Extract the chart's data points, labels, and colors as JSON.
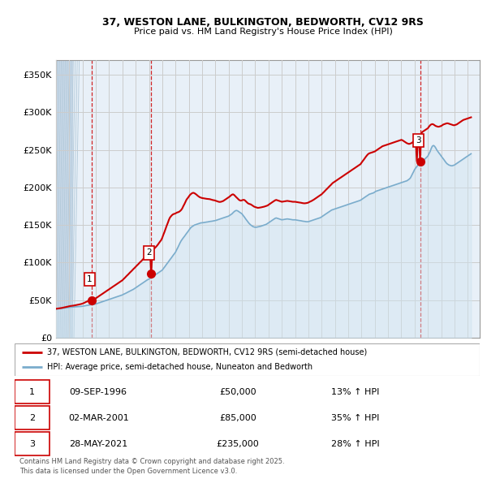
{
  "title1": "37, WESTON LANE, BULKINGTON, BEDWORTH, CV12 9RS",
  "title2": "Price paid vs. HM Land Registry's House Price Index (HPI)",
  "xlim_start": 1994.0,
  "xlim_end": 2025.9,
  "ylim": [
    0,
    370000
  ],
  "yticks": [
    0,
    50000,
    100000,
    150000,
    200000,
    250000,
    300000,
    350000
  ],
  "ytick_labels": [
    "£0",
    "£50K",
    "£100K",
    "£150K",
    "£200K",
    "£250K",
    "£300K",
    "£350K"
  ],
  "sale_dates": [
    1996.69,
    2001.17,
    2021.41
  ],
  "sale_prices": [
    50000,
    85000,
    235000
  ],
  "sale_labels": [
    "1",
    "2",
    "3"
  ],
  "legend_line1": "37, WESTON LANE, BULKINGTON, BEDWORTH, CV12 9RS (semi-detached house)",
  "legend_line2": "HPI: Average price, semi-detached house, Nuneaton and Bedworth",
  "transaction_rows": [
    [
      "1",
      "09-SEP-1996",
      "£50,000",
      "13% ↑ HPI"
    ],
    [
      "2",
      "02-MAR-2001",
      "£85,000",
      "35% ↑ HPI"
    ],
    [
      "3",
      "28-MAY-2021",
      "£235,000",
      "28% ↑ HPI"
    ]
  ],
  "footnote": "Contains HM Land Registry data © Crown copyright and database right 2025.\nThis data is licensed under the Open Government Licence v3.0.",
  "red_color": "#cc0000",
  "blue_color": "#7aaccc",
  "blue_fill": "#d0e4f0",
  "vline_color": "#cc0000",
  "grid_color": "#cccccc",
  "bg_color": "#e8f0f8",
  "hatch_color": "#c8d8e8",
  "hpi_x": [
    1994.0,
    1994.08,
    1994.17,
    1994.25,
    1994.33,
    1994.42,
    1994.5,
    1994.58,
    1994.67,
    1994.75,
    1994.83,
    1994.92,
    1995.0,
    1995.08,
    1995.17,
    1995.25,
    1995.33,
    1995.42,
    1995.5,
    1995.58,
    1995.67,
    1995.75,
    1995.83,
    1995.92,
    1996.0,
    1996.08,
    1996.17,
    1996.25,
    1996.33,
    1996.42,
    1996.5,
    1996.58,
    1996.67,
    1996.75,
    1996.83,
    1996.92,
    1997.0,
    1997.08,
    1997.17,
    1997.25,
    1997.33,
    1997.42,
    1997.5,
    1997.58,
    1997.67,
    1997.75,
    1997.83,
    1997.92,
    1998.0,
    1998.08,
    1998.17,
    1998.25,
    1998.33,
    1998.42,
    1998.5,
    1998.58,
    1998.67,
    1998.75,
    1998.83,
    1998.92,
    1999.0,
    1999.08,
    1999.17,
    1999.25,
    1999.33,
    1999.42,
    1999.5,
    1999.58,
    1999.67,
    1999.75,
    1999.83,
    1999.92,
    2000.0,
    2000.08,
    2000.17,
    2000.25,
    2000.33,
    2000.42,
    2000.5,
    2000.58,
    2000.67,
    2000.75,
    2000.83,
    2000.92,
    2001.0,
    2001.08,
    2001.17,
    2001.25,
    2001.33,
    2001.42,
    2001.5,
    2001.58,
    2001.67,
    2001.75,
    2001.83,
    2001.92,
    2002.0,
    2002.08,
    2002.17,
    2002.25,
    2002.33,
    2002.42,
    2002.5,
    2002.58,
    2002.67,
    2002.75,
    2002.83,
    2002.92,
    2003.0,
    2003.08,
    2003.17,
    2003.25,
    2003.33,
    2003.42,
    2003.5,
    2003.58,
    2003.67,
    2003.75,
    2003.83,
    2003.92,
    2004.0,
    2004.08,
    2004.17,
    2004.25,
    2004.33,
    2004.42,
    2004.5,
    2004.58,
    2004.67,
    2004.75,
    2004.83,
    2004.92,
    2005.0,
    2005.08,
    2005.17,
    2005.25,
    2005.33,
    2005.42,
    2005.5,
    2005.58,
    2005.67,
    2005.75,
    2005.83,
    2005.92,
    2006.0,
    2006.08,
    2006.17,
    2006.25,
    2006.33,
    2006.42,
    2006.5,
    2006.58,
    2006.67,
    2006.75,
    2006.83,
    2006.92,
    2007.0,
    2007.08,
    2007.17,
    2007.25,
    2007.33,
    2007.42,
    2007.5,
    2007.58,
    2007.67,
    2007.75,
    2007.83,
    2007.92,
    2008.0,
    2008.08,
    2008.17,
    2008.25,
    2008.33,
    2008.42,
    2008.5,
    2008.58,
    2008.67,
    2008.75,
    2008.83,
    2008.92,
    2009.0,
    2009.08,
    2009.17,
    2009.25,
    2009.33,
    2009.42,
    2009.5,
    2009.58,
    2009.67,
    2009.75,
    2009.83,
    2009.92,
    2010.0,
    2010.08,
    2010.17,
    2010.25,
    2010.33,
    2010.42,
    2010.5,
    2010.58,
    2010.67,
    2010.75,
    2010.83,
    2010.92,
    2011.0,
    2011.08,
    2011.17,
    2011.25,
    2011.33,
    2011.42,
    2011.5,
    2011.58,
    2011.67,
    2011.75,
    2011.83,
    2011.92,
    2012.0,
    2012.08,
    2012.17,
    2012.25,
    2012.33,
    2012.42,
    2012.5,
    2012.58,
    2012.67,
    2012.75,
    2012.83,
    2012.92,
    2013.0,
    2013.08,
    2013.17,
    2013.25,
    2013.33,
    2013.42,
    2013.5,
    2013.58,
    2013.67,
    2013.75,
    2013.83,
    2013.92,
    2014.0,
    2014.08,
    2014.17,
    2014.25,
    2014.33,
    2014.42,
    2014.5,
    2014.58,
    2014.67,
    2014.75,
    2014.83,
    2014.92,
    2015.0,
    2015.08,
    2015.17,
    2015.25,
    2015.33,
    2015.42,
    2015.5,
    2015.58,
    2015.67,
    2015.75,
    2015.83,
    2015.92,
    2016.0,
    2016.08,
    2016.17,
    2016.25,
    2016.33,
    2016.42,
    2016.5,
    2016.58,
    2016.67,
    2016.75,
    2016.83,
    2016.92,
    2017.0,
    2017.08,
    2017.17,
    2017.25,
    2017.33,
    2017.42,
    2017.5,
    2017.58,
    2017.67,
    2017.75,
    2017.83,
    2017.92,
    2018.0,
    2018.08,
    2018.17,
    2018.25,
    2018.33,
    2018.42,
    2018.5,
    2018.58,
    2018.67,
    2018.75,
    2018.83,
    2018.92,
    2019.0,
    2019.08,
    2019.17,
    2019.25,
    2019.33,
    2019.42,
    2019.5,
    2019.58,
    2019.67,
    2019.75,
    2019.83,
    2019.92,
    2020.0,
    2020.08,
    2020.17,
    2020.25,
    2020.33,
    2020.42,
    2020.5,
    2020.58,
    2020.67,
    2020.75,
    2020.83,
    2020.92,
    2021.0,
    2021.08,
    2021.17,
    2021.25,
    2021.33,
    2021.42,
    2021.5,
    2021.58,
    2021.67,
    2021.75,
    2021.83,
    2021.92,
    2022.0,
    2022.08,
    2022.17,
    2022.25,
    2022.33,
    2022.42,
    2022.5,
    2022.58,
    2022.67,
    2022.75,
    2022.83,
    2022.92,
    2023.0,
    2023.08,
    2023.17,
    2023.25,
    2023.33,
    2023.42,
    2023.5,
    2023.58,
    2023.67,
    2023.75,
    2023.83,
    2023.92,
    2024.0,
    2024.08,
    2024.17,
    2024.25,
    2024.33,
    2024.42,
    2024.5,
    2024.58,
    2024.67,
    2024.75,
    2024.83,
    2024.92,
    2025.0,
    2025.08,
    2025.17,
    2025.25
  ],
  "hpi_y": [
    38000,
    38200,
    38400,
    38600,
    38800,
    39000,
    39200,
    39400,
    39600,
    39800,
    40000,
    40200,
    40400,
    40500,
    40700,
    40800,
    41000,
    41100,
    41200,
    41300,
    41400,
    41500,
    41600,
    41700,
    42000,
    42200,
    42500,
    42800,
    43000,
    43200,
    43500,
    43800,
    44000,
    44200,
    44400,
    44700,
    45000,
    45500,
    46000,
    46500,
    47000,
    47500,
    48000,
    48500,
    49000,
    49500,
    50000,
    50500,
    51000,
    51500,
    52000,
    52500,
    53000,
    53500,
    54000,
    54500,
    55000,
    55500,
    56000,
    56500,
    57000,
    57800,
    58500,
    59200,
    60000,
    60800,
    61500,
    62200,
    63000,
    63800,
    64500,
    65500,
    66500,
    67500,
    68500,
    69500,
    70500,
    71500,
    72500,
    73500,
    74500,
    75500,
    76500,
    77500,
    78000,
    79000,
    80000,
    81000,
    82000,
    83000,
    84000,
    85000,
    86000,
    87000,
    88000,
    89000,
    90000,
    92000,
    94000,
    96000,
    98000,
    100000,
    102000,
    104000,
    106000,
    108000,
    110000,
    112000,
    114000,
    117000,
    120000,
    123000,
    126000,
    129000,
    131000,
    133000,
    135000,
    137000,
    139000,
    141000,
    143000,
    145000,
    147000,
    148000,
    149000,
    150000,
    150500,
    151000,
    151500,
    152000,
    152500,
    153000,
    153000,
    153200,
    153500,
    153800,
    154000,
    154200,
    154500,
    154800,
    155000,
    155200,
    155500,
    155800,
    156000,
    156500,
    157000,
    157500,
    158000,
    158500,
    159000,
    159500,
    160000,
    160500,
    161000,
    161500,
    162000,
    163000,
    164000,
    165000,
    166500,
    168000,
    169000,
    169500,
    169000,
    168000,
    167000,
    166000,
    165000,
    163000,
    161000,
    159000,
    157000,
    155000,
    153000,
    151500,
    150000,
    149000,
    148000,
    147500,
    147000,
    147200,
    147500,
    147800,
    148000,
    148500,
    149000,
    149500,
    150000,
    150500,
    151000,
    152000,
    153000,
    154000,
    155000,
    156000,
    157000,
    158000,
    159000,
    159500,
    159000,
    158500,
    158000,
    157500,
    157000,
    157200,
    157500,
    157800,
    158000,
    158200,
    158000,
    157800,
    157500,
    157200,
    157000,
    157000,
    157000,
    156800,
    156500,
    156200,
    156000,
    155800,
    155500,
    155200,
    155000,
    154800,
    154500,
    154500,
    154500,
    155000,
    155500,
    156000,
    156500,
    157000,
    157500,
    158000,
    158500,
    159000,
    159500,
    160000,
    161000,
    162000,
    163000,
    164000,
    165000,
    166000,
    167000,
    168000,
    169000,
    170000,
    170500,
    171000,
    171500,
    172000,
    172500,
    173000,
    173500,
    174000,
    174500,
    175000,
    175500,
    176000,
    176500,
    177000,
    177500,
    178000,
    178500,
    179000,
    179500,
    180000,
    180500,
    181000,
    181500,
    182000,
    182500,
    183000,
    184000,
    185000,
    186000,
    187000,
    188000,
    189000,
    190000,
    191000,
    191500,
    192000,
    192500,
    193000,
    194000,
    195000,
    195500,
    196000,
    196500,
    197000,
    197500,
    198000,
    198500,
    199000,
    199500,
    200000,
    200500,
    201000,
    201500,
    202000,
    202500,
    203000,
    203500,
    204000,
    204500,
    205000,
    205500,
    206000,
    206500,
    207000,
    207500,
    208000,
    208500,
    209000,
    210000,
    211000,
    212500,
    215000,
    218000,
    221000,
    224000,
    226000,
    228000,
    230000,
    232000,
    233000,
    234000,
    235000,
    236000,
    237500,
    239000,
    240500,
    242000,
    245000,
    248000,
    252000,
    255000,
    256000,
    255000,
    253000,
    250000,
    248000,
    246000,
    244000,
    242000,
    240000,
    238000,
    236000,
    234000,
    232000,
    231000,
    230000,
    229500,
    229000,
    229000,
    229500,
    230000,
    231000,
    232000,
    233000,
    234000,
    235000,
    236000,
    237000,
    238000,
    239000,
    240000,
    241000,
    242000,
    243000,
    244000,
    245000
  ],
  "price_x": [
    1994.0,
    1994.08,
    1994.17,
    1994.25,
    1994.33,
    1994.42,
    1994.5,
    1994.58,
    1994.67,
    1994.75,
    1994.83,
    1994.92,
    1995.0,
    1995.08,
    1995.17,
    1995.25,
    1995.33,
    1995.42,
    1995.5,
    1995.58,
    1995.67,
    1995.75,
    1995.83,
    1995.92,
    1996.0,
    1996.08,
    1996.17,
    1996.25,
    1996.33,
    1996.42,
    1996.5,
    1996.58,
    1996.69,
    1996.75,
    1996.83,
    1996.92,
    1997.0,
    1997.08,
    1997.17,
    1997.25,
    1997.33,
    1997.42,
    1997.5,
    1997.58,
    1997.67,
    1997.75,
    1997.83,
    1997.92,
    1998.0,
    1998.08,
    1998.17,
    1998.25,
    1998.33,
    1998.42,
    1998.5,
    1998.58,
    1998.67,
    1998.75,
    1998.83,
    1998.92,
    1999.0,
    1999.08,
    1999.17,
    1999.25,
    1999.33,
    1999.42,
    1999.5,
    1999.58,
    1999.67,
    1999.75,
    1999.83,
    1999.92,
    2000.0,
    2000.08,
    2000.17,
    2000.25,
    2000.33,
    2000.42,
    2000.5,
    2000.58,
    2000.67,
    2000.75,
    2000.83,
    2000.92,
    2001.0,
    2001.08,
    2001.17,
    2001.25,
    2001.33,
    2001.42,
    2001.5,
    2001.58,
    2001.67,
    2001.75,
    2001.83,
    2001.92,
    2002.0,
    2002.08,
    2002.17,
    2002.25,
    2002.33,
    2002.42,
    2002.5,
    2002.58,
    2002.67,
    2002.75,
    2002.83,
    2002.92,
    2003.0,
    2003.08,
    2003.17,
    2003.25,
    2003.33,
    2003.42,
    2003.5,
    2003.58,
    2003.67,
    2003.75,
    2003.83,
    2003.92,
    2004.0,
    2004.08,
    2004.17,
    2004.25,
    2004.33,
    2004.42,
    2004.5,
    2004.58,
    2004.67,
    2004.75,
    2004.83,
    2004.92,
    2005.0,
    2005.08,
    2005.17,
    2005.25,
    2005.33,
    2005.42,
    2005.5,
    2005.58,
    2005.67,
    2005.75,
    2005.83,
    2005.92,
    2006.0,
    2006.08,
    2006.17,
    2006.25,
    2006.33,
    2006.42,
    2006.5,
    2006.58,
    2006.67,
    2006.75,
    2006.83,
    2006.92,
    2007.0,
    2007.08,
    2007.17,
    2007.25,
    2007.33,
    2007.42,
    2007.5,
    2007.58,
    2007.67,
    2007.75,
    2007.83,
    2007.92,
    2008.0,
    2008.08,
    2008.17,
    2008.25,
    2008.33,
    2008.42,
    2008.5,
    2008.58,
    2008.67,
    2008.75,
    2008.83,
    2008.92,
    2009.0,
    2009.08,
    2009.17,
    2009.25,
    2009.33,
    2009.42,
    2009.5,
    2009.58,
    2009.67,
    2009.75,
    2009.83,
    2009.92,
    2010.0,
    2010.08,
    2010.17,
    2010.25,
    2010.33,
    2010.42,
    2010.5,
    2010.58,
    2010.67,
    2010.75,
    2010.83,
    2010.92,
    2011.0,
    2011.08,
    2011.17,
    2011.25,
    2011.33,
    2011.42,
    2011.5,
    2011.58,
    2011.67,
    2011.75,
    2011.83,
    2011.92,
    2012.0,
    2012.08,
    2012.17,
    2012.25,
    2012.33,
    2012.42,
    2012.5,
    2012.58,
    2012.67,
    2012.75,
    2012.83,
    2012.92,
    2013.0,
    2013.08,
    2013.17,
    2013.25,
    2013.33,
    2013.42,
    2013.5,
    2013.58,
    2013.67,
    2013.75,
    2013.83,
    2013.92,
    2014.0,
    2014.08,
    2014.17,
    2014.25,
    2014.33,
    2014.42,
    2014.5,
    2014.58,
    2014.67,
    2014.75,
    2014.83,
    2014.92,
    2015.0,
    2015.08,
    2015.17,
    2015.25,
    2015.33,
    2015.42,
    2015.5,
    2015.58,
    2015.67,
    2015.75,
    2015.83,
    2015.92,
    2016.0,
    2016.08,
    2016.17,
    2016.25,
    2016.33,
    2016.42,
    2016.5,
    2016.58,
    2016.67,
    2016.75,
    2016.83,
    2016.92,
    2017.0,
    2017.08,
    2017.17,
    2017.25,
    2017.33,
    2017.42,
    2017.5,
    2017.58,
    2017.67,
    2017.75,
    2017.83,
    2017.92,
    2018.0,
    2018.08,
    2018.17,
    2018.25,
    2018.33,
    2018.42,
    2018.5,
    2018.58,
    2018.67,
    2018.75,
    2018.83,
    2018.92,
    2019.0,
    2019.08,
    2019.17,
    2019.25,
    2019.33,
    2019.42,
    2019.5,
    2019.58,
    2019.67,
    2019.75,
    2019.83,
    2019.92,
    2020.0,
    2020.08,
    2020.17,
    2020.25,
    2020.33,
    2020.42,
    2020.5,
    2020.58,
    2020.67,
    2020.75,
    2020.83,
    2020.92,
    2021.0,
    2021.08,
    2021.17,
    2021.25,
    2021.33,
    2021.41,
    2021.5,
    2021.58,
    2021.67,
    2021.75,
    2021.83,
    2021.92,
    2022.0,
    2022.08,
    2022.17,
    2022.25,
    2022.33,
    2022.42,
    2022.5,
    2022.58,
    2022.67,
    2022.75,
    2022.83,
    2022.92,
    2023.0,
    2023.08,
    2023.17,
    2023.25,
    2023.33,
    2023.42,
    2023.5,
    2023.58,
    2023.67,
    2023.75,
    2023.83,
    2023.92,
    2024.0,
    2024.08,
    2024.17,
    2024.25,
    2024.33,
    2024.42,
    2024.5,
    2024.58,
    2024.67,
    2024.75,
    2024.83,
    2024.92,
    2025.0,
    2025.08,
    2025.17,
    2025.25
  ],
  "price_y": [
    38500,
    38700,
    38900,
    39100,
    39300,
    39600,
    39900,
    40200,
    40500,
    40800,
    41200,
    41600,
    42000,
    42200,
    42400,
    42600,
    42800,
    43100,
    43400,
    43700,
    44000,
    44300,
    44600,
    45000,
    45500,
    46000,
    46800,
    47500,
    48200,
    49000,
    49500,
    50000,
    50000,
    50500,
    51000,
    51800,
    52500,
    53500,
    54500,
    55500,
    56500,
    57500,
    58500,
    59500,
    60500,
    61500,
    62500,
    63500,
    64500,
    65500,
    66500,
    67500,
    68500,
    69500,
    70500,
    71500,
    72500,
    73500,
    74500,
    75500,
    76500,
    78000,
    79500,
    81000,
    82500,
    84000,
    85500,
    87000,
    88500,
    90000,
    91500,
    93000,
    94500,
    96000,
    97500,
    99000,
    100500,
    102000,
    103500,
    105000,
    106500,
    108000,
    109500,
    111000,
    112500,
    114000,
    85000,
    116000,
    117500,
    119000,
    120500,
    122000,
    124000,
    126000,
    128000,
    130000,
    133000,
    137000,
    141000,
    145000,
    149000,
    153000,
    157000,
    160000,
    162000,
    163500,
    164500,
    165000,
    165500,
    166500,
    167000,
    167500,
    168500,
    170000,
    172000,
    175000,
    178000,
    181000,
    184000,
    186000,
    188000,
    190000,
    191500,
    192500,
    193000,
    192500,
    191500,
    190500,
    189000,
    188000,
    187000,
    186500,
    186000,
    185800,
    185500,
    185200,
    185000,
    184800,
    184600,
    184500,
    184000,
    183500,
    183200,
    183000,
    182500,
    182000,
    181500,
    181000,
    180800,
    181000,
    181500,
    182000,
    183000,
    184000,
    185000,
    186000,
    187000,
    188000,
    189500,
    190500,
    191000,
    190000,
    188500,
    187000,
    185500,
    184000,
    183000,
    182500,
    183000,
    183500,
    183500,
    182500,
    181000,
    179500,
    178500,
    178000,
    177500,
    176500,
    175500,
    174500,
    174000,
    173500,
    173000,
    173000,
    173200,
    173500,
    173800,
    174000,
    174500,
    175000,
    175500,
    176000,
    177000,
    178000,
    179000,
    180000,
    181000,
    182000,
    183000,
    183500,
    183000,
    182500,
    182000,
    181500,
    181000,
    181200,
    181500,
    181800,
    182000,
    182200,
    182000,
    181800,
    181500,
    181200,
    181000,
    181000,
    181000,
    180800,
    180500,
    180200,
    180000,
    179800,
    179500,
    179200,
    179000,
    179000,
    179200,
    179500,
    180000,
    180800,
    181500,
    182200,
    183000,
    184000,
    185000,
    186000,
    187000,
    188000,
    189000,
    190000,
    191000,
    192500,
    194000,
    195500,
    197000,
    198500,
    200000,
    201500,
    203000,
    204500,
    206000,
    207000,
    208000,
    209000,
    210000,
    211000,
    212000,
    213000,
    214000,
    215000,
    216000,
    217000,
    218000,
    219000,
    220000,
    221000,
    222000,
    223000,
    224000,
    225000,
    226000,
    227000,
    228000,
    229000,
    230000,
    231000,
    233000,
    235000,
    237000,
    239000,
    241000,
    243000,
    244500,
    245500,
    246000,
    246500,
    247000,
    247500,
    248000,
    249000,
    250000,
    251000,
    252000,
    253000,
    254000,
    255000,
    255500,
    256000,
    256500,
    257000,
    257500,
    258000,
    258500,
    259000,
    259500,
    260000,
    260500,
    261000,
    261500,
    262000,
    262500,
    263000,
    263500,
    263000,
    262000,
    261000,
    260000,
    259000,
    258500,
    258000,
    258500,
    259000,
    260000,
    261500,
    263000,
    264000,
    235000,
    267000,
    269000,
    235000,
    272000,
    274000,
    275000,
    276000,
    277000,
    278000,
    279000,
    281000,
    283000,
    284000,
    284500,
    284000,
    283000,
    282000,
    281500,
    281000,
    281000,
    281500,
    282000,
    283000,
    284000,
    284500,
    285000,
    285500,
    285500,
    285000,
    284500,
    284000,
    283500,
    283000,
    283000,
    283500,
    284000,
    285000,
    286000,
    287000,
    288000,
    289000,
    290000,
    290500,
    291000,
    291500,
    292000,
    292500,
    293000,
    293500
  ]
}
